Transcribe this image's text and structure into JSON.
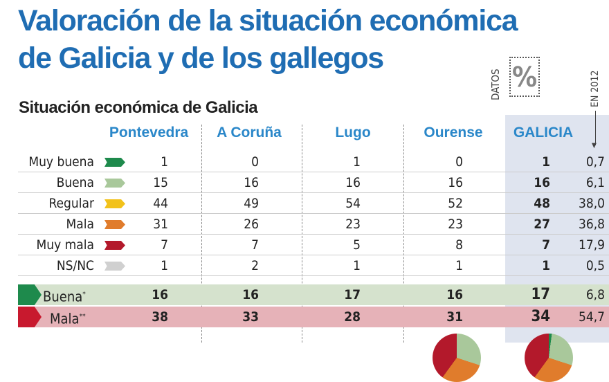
{
  "title": [
    "Valoración de la situación económica",
    "de Galicia y de los gallegos"
  ],
  "subtitle": "Situación económica de Galicia",
  "badge": {
    "label": "DATOS",
    "icon": "percent-icon",
    "symbol": "%"
  },
  "year_label": "EN 2012",
  "chart_data": {
    "type": "table",
    "title": "Situación económica de Galicia",
    "columns": [
      "Pontevedra",
      "A Coruña",
      "Lugo",
      "Ourense",
      "GALICIA",
      "EN 2012"
    ],
    "rows": [
      {
        "label": "Muy buena",
        "color": "#1e8a4c",
        "values": [
          "1",
          "0",
          "1",
          "0",
          "1",
          "0,7"
        ]
      },
      {
        "label": "Buena",
        "color": "#a9c89b",
        "values": [
          "15",
          "16",
          "16",
          "16",
          "16",
          "6,1"
        ]
      },
      {
        "label": "Regular",
        "color": "#f2c21b",
        "values": [
          "44",
          "49",
          "54",
          "52",
          "48",
          "38,0"
        ]
      },
      {
        "label": "Mala",
        "color": "#e07c2c",
        "values": [
          "31",
          "26",
          "23",
          "23",
          "27",
          "36,8"
        ]
      },
      {
        "label": "Muy mala",
        "color": "#b3192b",
        "values": [
          "7",
          "7",
          "5",
          "8",
          "7",
          "17,9"
        ]
      },
      {
        "label": "NS/NC",
        "color": "#d0d0d0",
        "values": [
          "1",
          "2",
          "1",
          "1",
          "1",
          "0,5"
        ]
      }
    ],
    "summary": [
      {
        "label": "Buena",
        "mark": "*",
        "color": "#1e8a4c",
        "bg": "#d5e2cd",
        "values": [
          "16",
          "16",
          "17",
          "16",
          "17",
          "6,8"
        ]
      },
      {
        "label": "Mala",
        "mark": "**",
        "color": "#c8192e",
        "bg": "#e6b2b8",
        "values": [
          "38",
          "33",
          "28",
          "31",
          "34",
          "54,7"
        ]
      }
    ]
  }
}
